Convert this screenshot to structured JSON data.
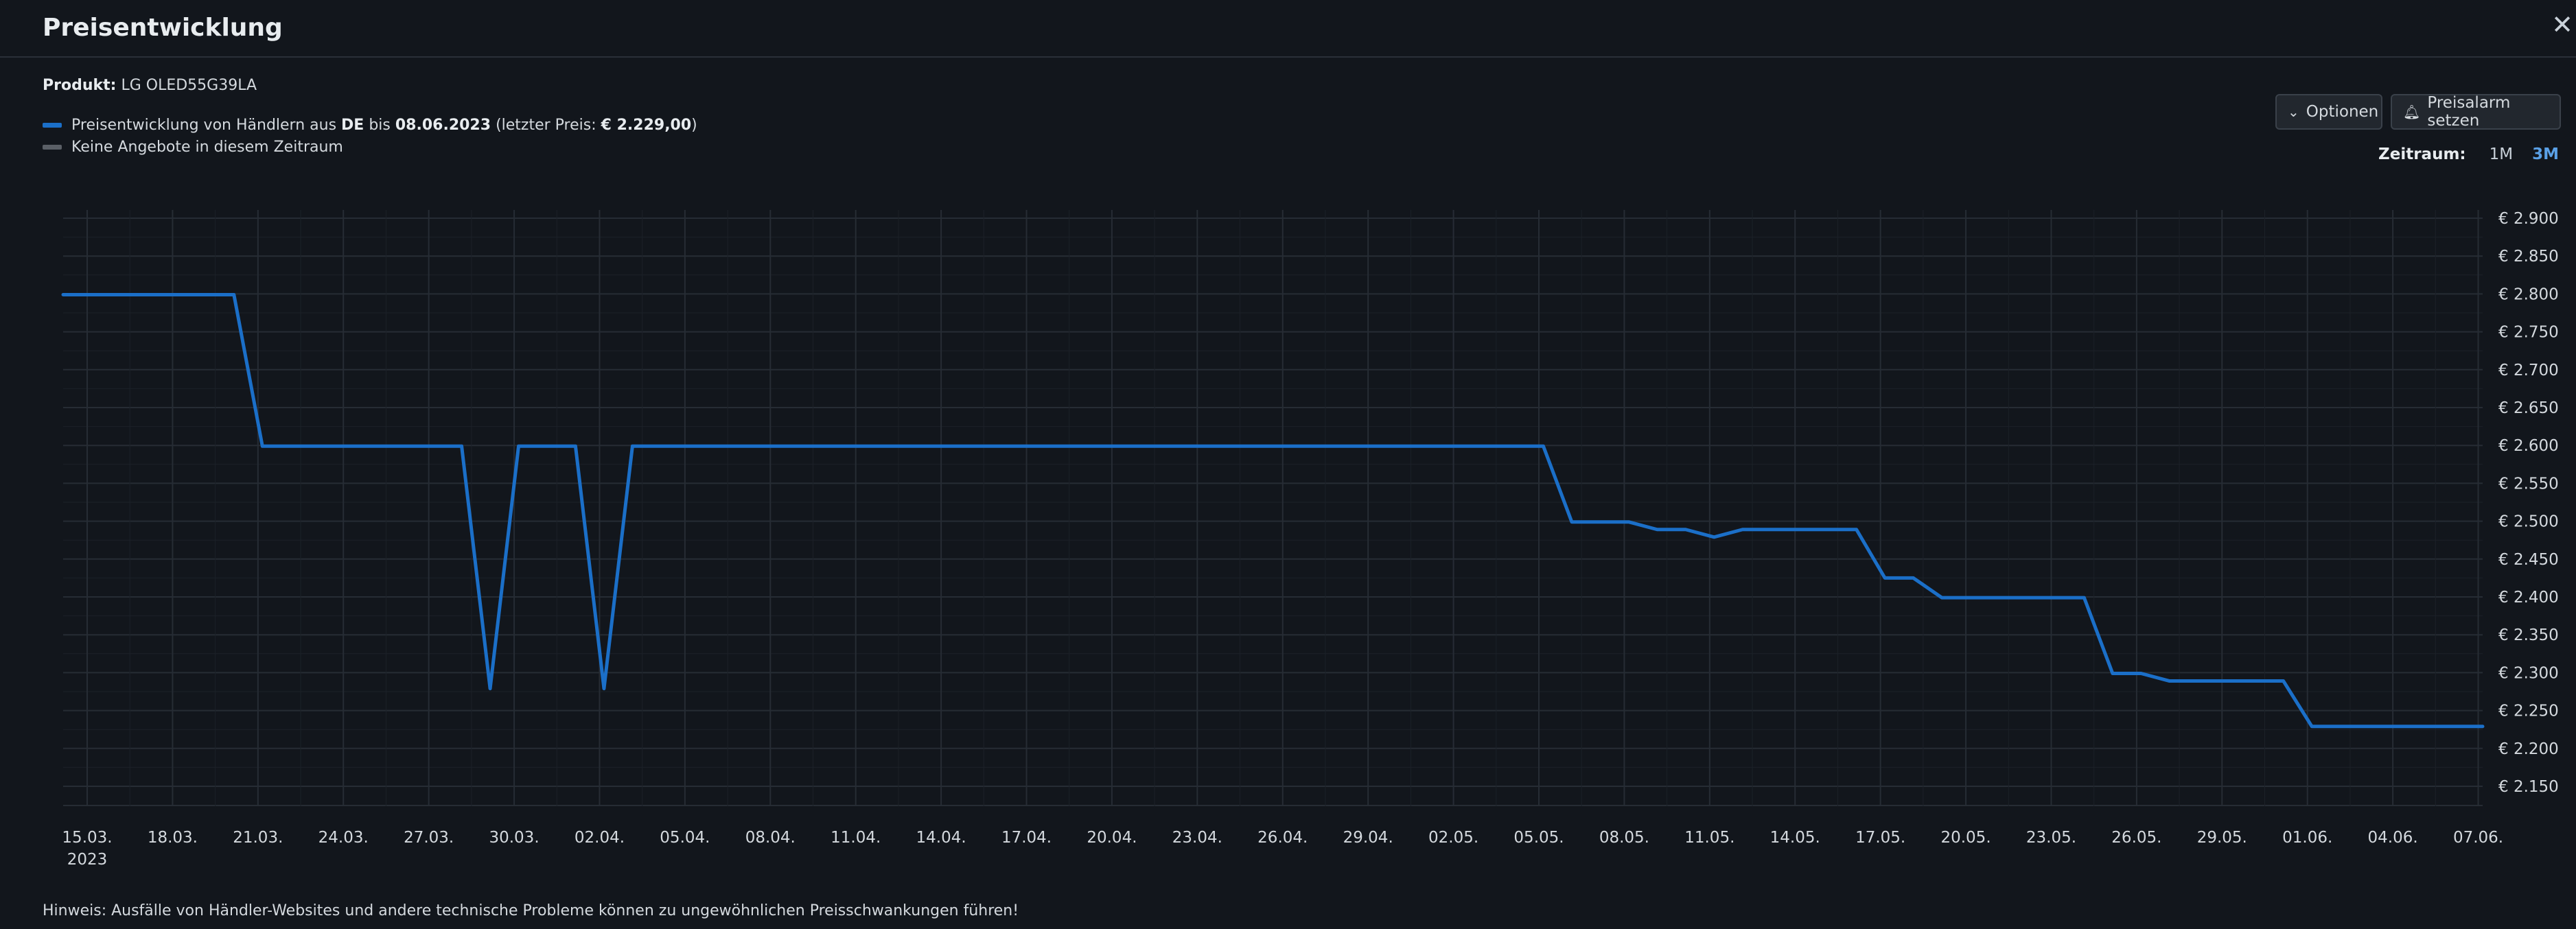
{
  "header": {
    "title": "Preisentwicklung",
    "close_icon": "close-icon"
  },
  "product": {
    "label": "Produkt:",
    "name": "LG OLED55G39LA"
  },
  "legend": {
    "price": {
      "color": "#1b6fc8",
      "text_prefix": "Preisentwicklung von Händlern aus",
      "country": "DE",
      "text_until": "bis",
      "date": "08.06.2023",
      "last_price_label": "(letzter Preis:",
      "last_price": "€ 2.229,00",
      "close_paren": ")"
    },
    "none": {
      "color": "#5a5f66",
      "text": "Keine Angebote in diesem Zeitraum"
    }
  },
  "toolbar": {
    "options_label": "Optionen",
    "options_icon": "chevron-down-icon",
    "alarm_label": "Preisalarm setzen",
    "alarm_icon": "bell-icon"
  },
  "timeframe": {
    "label": "Zeitraum:",
    "options": [
      "1M",
      "3M"
    ],
    "selected": "3M"
  },
  "chart_data": {
    "type": "line",
    "title": "",
    "xlabel": "",
    "ylabel": "",
    "ylim": [
      2150,
      2900
    ],
    "xlim": [
      "2023-03-15",
      "2023-06-08"
    ],
    "grid": true,
    "y_ticks": [
      "€ 2.150",
      "€ 2.200",
      "€ 2.250",
      "€ 2.300",
      "€ 2.350",
      "€ 2.400",
      "€ 2.450",
      "€ 2.500",
      "€ 2.550",
      "€ 2.600",
      "€ 2.650",
      "€ 2.700",
      "€ 2.750",
      "€ 2.800",
      "€ 2.850",
      "€ 2.900"
    ],
    "x_ticks": [
      {
        "date": "2023-03-15",
        "label": "15.03.",
        "sub": "2023"
      },
      {
        "date": "2023-03-18",
        "label": "18.03."
      },
      {
        "date": "2023-03-21",
        "label": "21.03."
      },
      {
        "date": "2023-03-24",
        "label": "24.03."
      },
      {
        "date": "2023-03-27",
        "label": "27.03."
      },
      {
        "date": "2023-03-30",
        "label": "30.03."
      },
      {
        "date": "2023-04-02",
        "label": "02.04."
      },
      {
        "date": "2023-04-05",
        "label": "05.04."
      },
      {
        "date": "2023-04-08",
        "label": "08.04."
      },
      {
        "date": "2023-04-11",
        "label": "11.04."
      },
      {
        "date": "2023-04-14",
        "label": "14.04."
      },
      {
        "date": "2023-04-17",
        "label": "17.04."
      },
      {
        "date": "2023-04-20",
        "label": "20.04."
      },
      {
        "date": "2023-04-23",
        "label": "23.04."
      },
      {
        "date": "2023-04-26",
        "label": "26.04."
      },
      {
        "date": "2023-04-29",
        "label": "29.04."
      },
      {
        "date": "2023-05-02",
        "label": "02.05."
      },
      {
        "date": "2023-05-05",
        "label": "05.05."
      },
      {
        "date": "2023-05-08",
        "label": "08.05."
      },
      {
        "date": "2023-05-11",
        "label": "11.05."
      },
      {
        "date": "2023-05-14",
        "label": "14.05."
      },
      {
        "date": "2023-05-17",
        "label": "17.05."
      },
      {
        "date": "2023-05-20",
        "label": "20.05."
      },
      {
        "date": "2023-05-23",
        "label": "23.05."
      },
      {
        "date": "2023-05-26",
        "label": "26.05."
      },
      {
        "date": "2023-05-29",
        "label": "29.05."
      },
      {
        "date": "2023-06-01",
        "label": "01.06."
      },
      {
        "date": "2023-06-04",
        "label": "04.06."
      },
      {
        "date": "2023-06-07",
        "label": "07.06."
      }
    ],
    "series": [
      {
        "color": "#1b6fc8",
        "points": [
          [
            "2023-03-15",
            2799
          ],
          [
            "2023-03-21",
            2799
          ],
          [
            "2023-03-22",
            2599
          ],
          [
            "2023-03-29",
            2599
          ],
          [
            "2023-03-30",
            2279
          ],
          [
            "2023-03-31",
            2599
          ],
          [
            "2023-04-02",
            2599
          ],
          [
            "2023-04-03",
            2279
          ],
          [
            "2023-04-04",
            2599
          ],
          [
            "2023-05-06",
            2599
          ],
          [
            "2023-05-07",
            2499
          ],
          [
            "2023-05-09",
            2499
          ],
          [
            "2023-05-10",
            2489
          ],
          [
            "2023-05-11",
            2489
          ],
          [
            "2023-05-12",
            2479
          ],
          [
            "2023-05-13",
            2489
          ],
          [
            "2023-05-17",
            2489
          ],
          [
            "2023-05-18",
            2425
          ],
          [
            "2023-05-19",
            2425
          ],
          [
            "2023-05-20",
            2399
          ],
          [
            "2023-05-25",
            2399
          ],
          [
            "2023-05-26",
            2299
          ],
          [
            "2023-05-27",
            2299
          ],
          [
            "2023-05-28",
            2289
          ],
          [
            "2023-06-01",
            2289
          ],
          [
            "2023-06-02",
            2229
          ],
          [
            "2023-06-08",
            2229
          ]
        ]
      }
    ]
  },
  "footer": {
    "hint": "Hinweis: Ausfälle von Händler-Websites und andere technische Probleme können zu ungewöhnlichen Preisschwankungen führen!"
  }
}
